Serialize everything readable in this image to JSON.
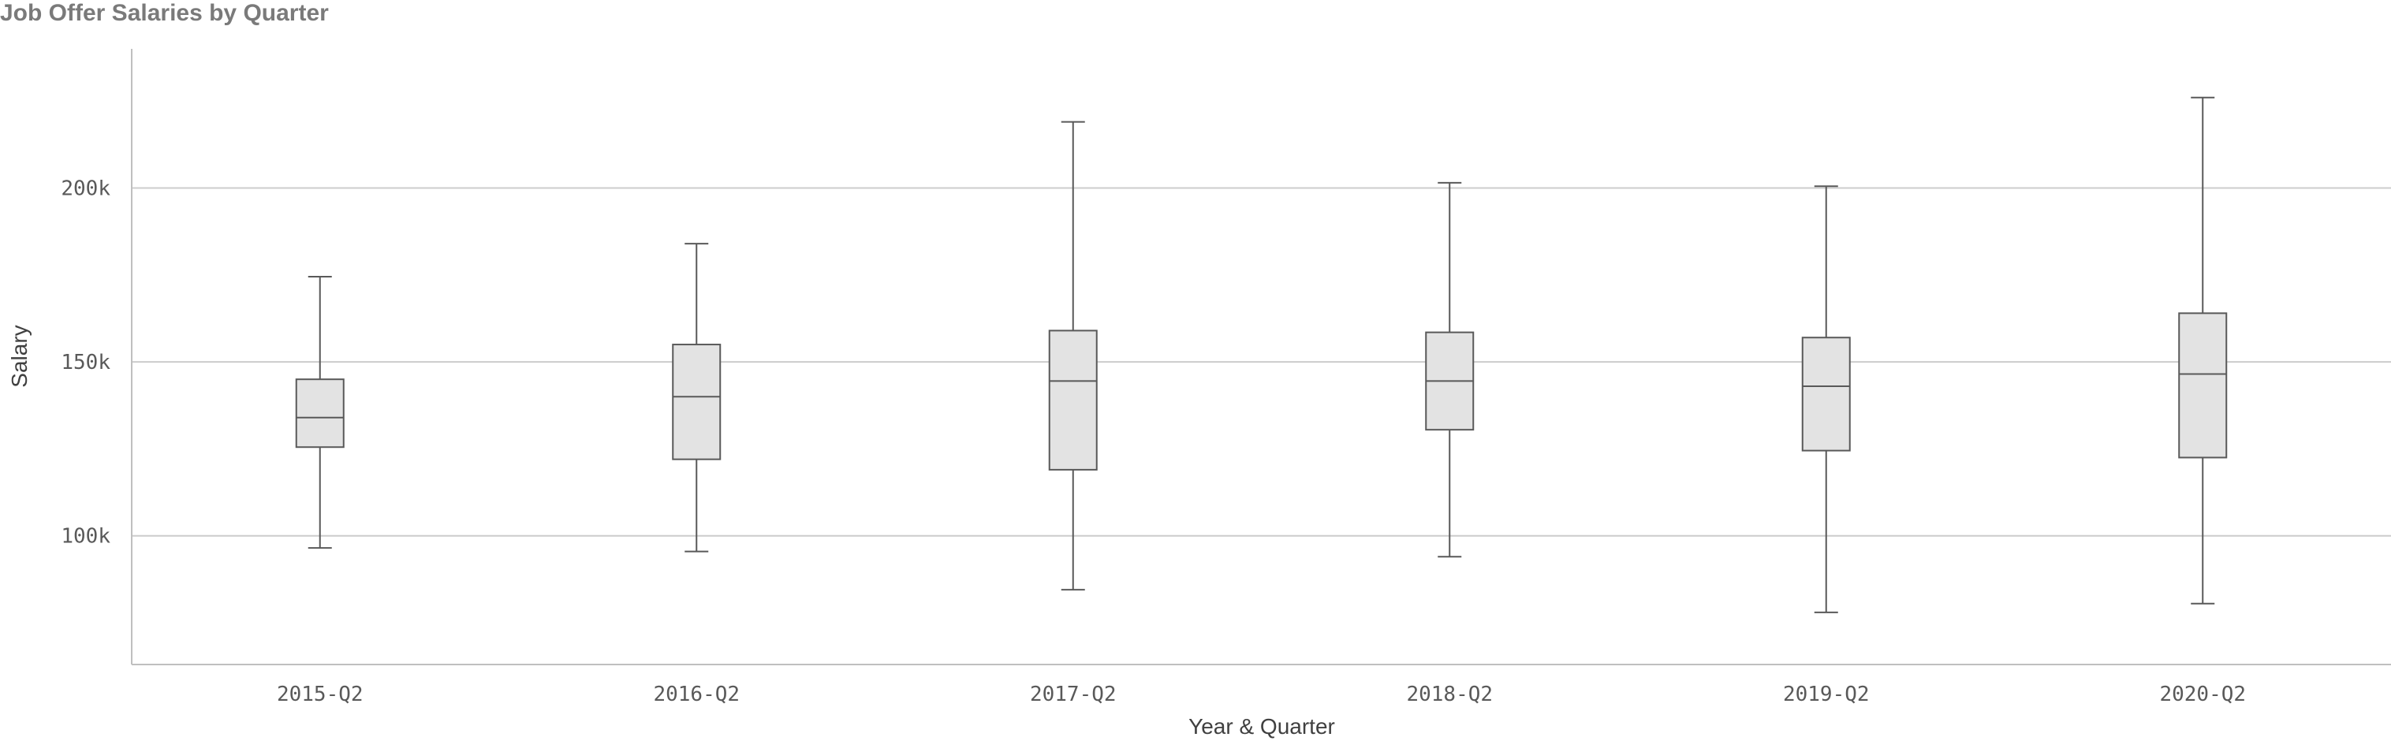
{
  "chart_data": {
    "type": "boxplot",
    "title": "Job Offer Salaries by Quarter",
    "xlabel": "Year & Quarter",
    "ylabel": "Salary",
    "categories": [
      "2015-Q2",
      "2016-Q2",
      "2017-Q2",
      "2018-Q2",
      "2019-Q2",
      "2020-Q2"
    ],
    "boxes": [
      {
        "category": "2015-Q2",
        "min": 96500,
        "q1": 125500,
        "median": 134000,
        "q3": 145000,
        "max": 174500
      },
      {
        "category": "2016-Q2",
        "min": 95500,
        "q1": 122000,
        "median": 140000,
        "q3": 155000,
        "max": 184000
      },
      {
        "category": "2017-Q2",
        "min": 84500,
        "q1": 119000,
        "median": 144500,
        "q3": 159000,
        "max": 219000
      },
      {
        "category": "2018-Q2",
        "min": 94000,
        "q1": 130500,
        "median": 144500,
        "q3": 158500,
        "max": 201500
      },
      {
        "category": "2019-Q2",
        "min": 78000,
        "q1": 124500,
        "median": 143000,
        "q3": 157000,
        "max": 200500
      },
      {
        "category": "2020-Q2",
        "min": 80500,
        "q1": 122500,
        "median": 146500,
        "q3": 164000,
        "max": 226000
      }
    ],
    "yticks": [
      {
        "value": 100000,
        "label": "100k"
      },
      {
        "value": 150000,
        "label": "150k"
      },
      {
        "value": 200000,
        "label": "200k"
      }
    ],
    "ylim": [
      63000,
      240000
    ],
    "grid": true,
    "colors": {
      "box_fill": "#e3e3e3",
      "box_stroke": "#595959",
      "grid": "#cccccc",
      "axis": "#bfbfbf"
    }
  }
}
